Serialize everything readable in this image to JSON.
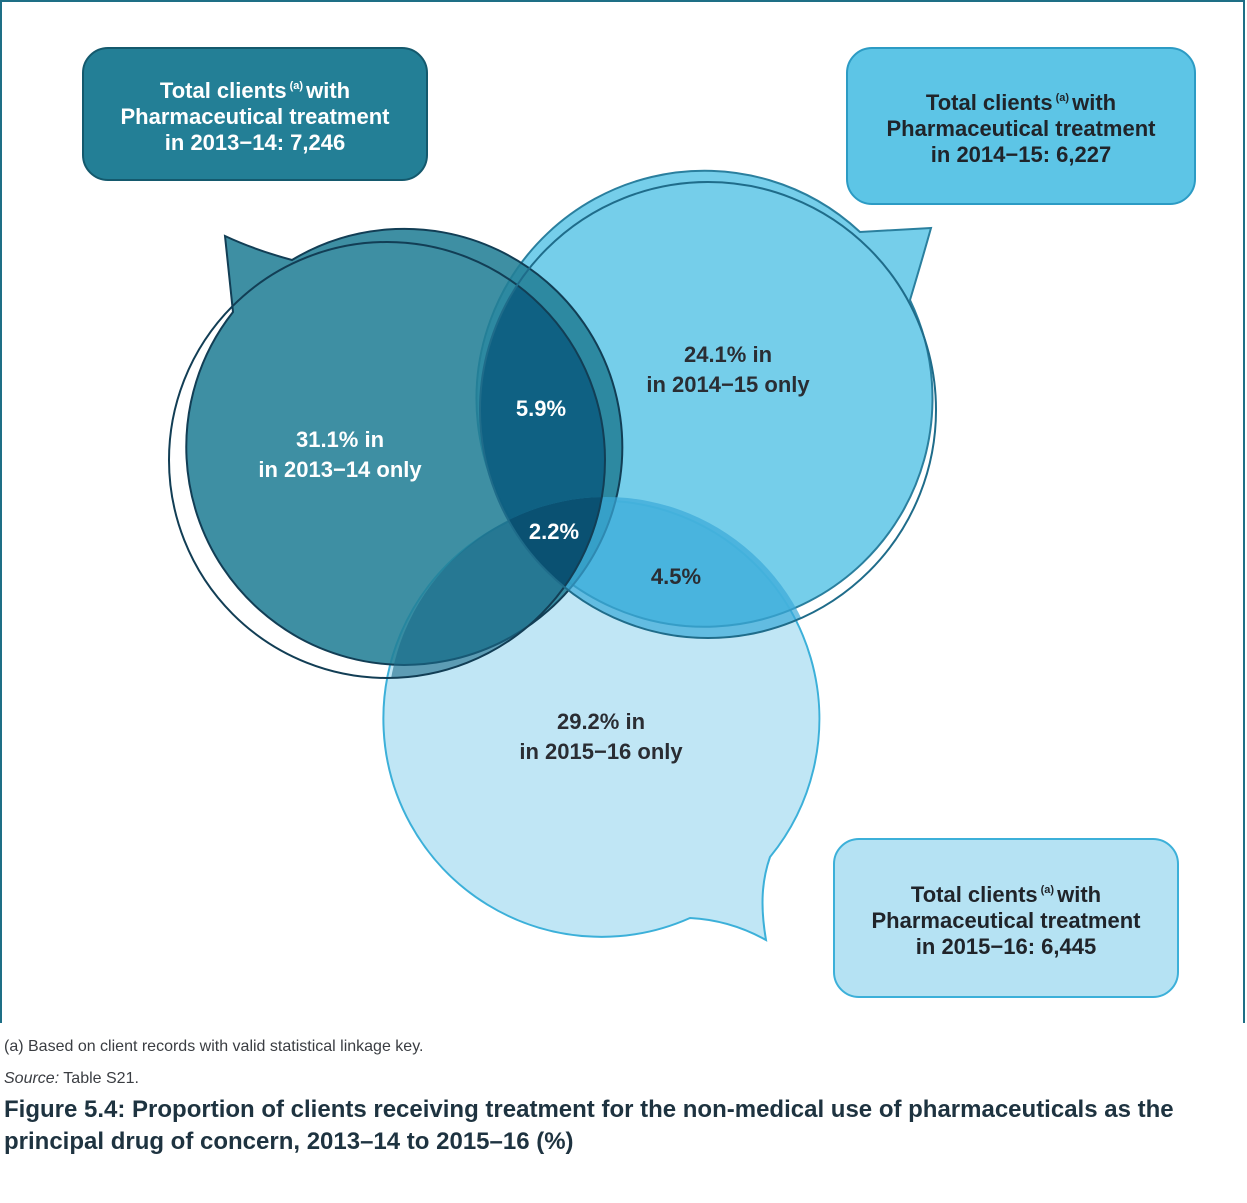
{
  "sets": [
    {
      "id": "2013-14",
      "box_lines": [
        "Total clients",
        "with",
        "Pharmaceutical treatment",
        "in 2013−14: 7,246"
      ],
      "sup": "(a)",
      "only_label": [
        "31.1% in",
        "in 2013−14 only"
      ],
      "fill": "#237f96"
    },
    {
      "id": "2014-15",
      "box_lines": [
        "Total clients",
        "with",
        "Pharmaceutical treatment",
        "in 2014−15: 6,227"
      ],
      "sup": "(a)",
      "only_label": [
        "24.1% in",
        "in 2014−15 only"
      ],
      "fill": "#5dc5e6"
    },
    {
      "id": "2015-16",
      "box_lines": [
        "Total clients",
        "with",
        "Pharmaceutical treatment",
        "in 2015−16: 6,445"
      ],
      "sup": "(a)",
      "only_label": [
        "29.2% in",
        "in 2015−16 only"
      ],
      "fill": "#b5e2f3"
    }
  ],
  "overlaps": {
    "y2013_y2014": "5.9%",
    "all_three": "2.2%",
    "y2014_y2015": "4.5%"
  },
  "footnote": "(a) Based on client records with valid statistical linkage key.",
  "source_label": "Source:",
  "source_text": " Table S21.",
  "caption": "Figure 5.4: Proportion of clients receiving treatment for the non-medical use of pharmaceuticals as the principal drug of concern, 2013–14 to 2015–16 (%)"
}
